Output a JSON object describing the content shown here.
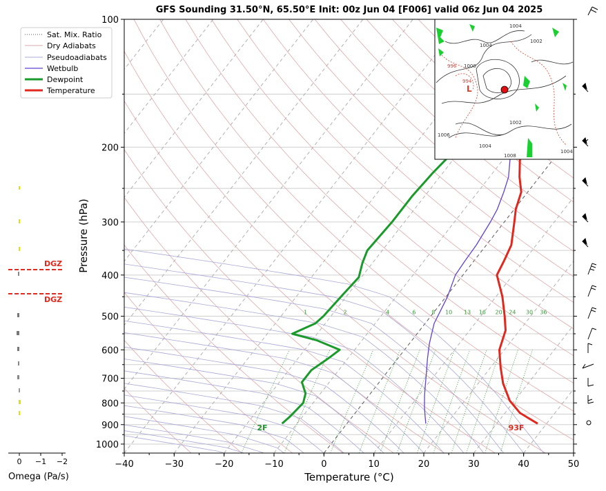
{
  "chart_data": {
    "type": "line",
    "title": "GFS Sounding 31.50°N, 65.50°E Init: 00z Jun 04 [F006] valid 06z Jun 04 2025",
    "xlabel": "Temperature (°C)",
    "ylabel": "Pressure (hPa)",
    "xlim": [
      -40,
      50
    ],
    "ylim": [
      1050,
      100
    ],
    "x_ticks": [
      "−40",
      "−30",
      "−20",
      "−10",
      "0",
      "10",
      "20",
      "30",
      "40",
      "50"
    ],
    "y_ticks": [
      "100",
      "200",
      "300",
      "400",
      "500",
      "600",
      "700",
      "800",
      "900",
      "1000"
    ],
    "legend": {
      "placement": "top-left",
      "entries": [
        "Sat. Mix. Ratio",
        "Dry Adiabats",
        "Pseudoadiabats",
        "Wetbulb",
        "Dewpoint",
        "Temperature"
      ]
    },
    "series": [
      {
        "name": "Temperature",
        "color": "#e0281e",
        "points": [
          [
            38.2,
            895
          ],
          [
            33,
            845
          ],
          [
            29,
            790
          ],
          [
            25,
            720
          ],
          [
            22,
            660
          ],
          [
            19,
            600
          ],
          [
            17.2,
            540
          ],
          [
            14.8,
            500
          ],
          [
            11.3,
            450
          ],
          [
            6.8,
            400
          ],
          [
            6,
            370
          ],
          [
            5,
            340
          ],
          [
            2,
            300
          ],
          [
            0.3,
            280
          ],
          [
            -1.3,
            255
          ],
          [
            -4,
            235
          ],
          [
            -6.5,
            215
          ],
          [
            -8,
            200
          ],
          [
            -11,
            175
          ],
          [
            -13.5,
            160
          ],
          [
            -14.5,
            150
          ],
          [
            -16.5,
            135
          ],
          [
            -18,
            125
          ],
          [
            -19.5,
            115
          ],
          [
            -21,
            108
          ],
          [
            -22,
            104
          ],
          [
            -23,
            100
          ]
        ]
      },
      {
        "name": "Wetbulb",
        "color": "#6040d0",
        "points": [
          [
            15.8,
            895
          ],
          [
            14.5,
            860
          ],
          [
            13,
            820
          ],
          [
            11.2,
            770
          ],
          [
            9.8,
            730
          ],
          [
            8,
            680
          ],
          [
            6,
            630
          ],
          [
            4,
            580
          ],
          [
            1.8,
            520
          ],
          [
            1.2,
            490
          ],
          [
            0.3,
            450
          ],
          [
            -1.5,
            400
          ],
          [
            -1.8,
            370
          ],
          [
            -2,
            340
          ],
          [
            -2.8,
            300
          ],
          [
            -3.4,
            280
          ],
          [
            -4.8,
            255
          ],
          [
            -6.2,
            235
          ],
          [
            -8.5,
            215
          ],
          [
            -10,
            200
          ],
          [
            -11,
            180
          ],
          [
            -12.5,
            165
          ],
          [
            -14,
            150
          ]
        ]
      },
      {
        "name": "Dewpoint",
        "color": "#1a9a2a",
        "points": [
          [
            -13,
            895
          ],
          [
            -12.5,
            860
          ],
          [
            -12,
            800
          ],
          [
            -13,
            760
          ],
          [
            -15.5,
            715
          ],
          [
            -15.5,
            670
          ],
          [
            -14,
            630
          ],
          [
            -13,
            600
          ],
          [
            -19,
            570
          ],
          [
            -25,
            550
          ],
          [
            -22,
            520
          ],
          [
            -21.5,
            500
          ],
          [
            -21,
            445
          ],
          [
            -20.5,
            405
          ],
          [
            -22,
            375
          ],
          [
            -23,
            350
          ],
          [
            -22.8,
            330
          ],
          [
            -22.5,
            300
          ],
          [
            -22.5,
            260
          ],
          [
            -22,
            230
          ],
          [
            -21,
            200
          ],
          [
            -22,
            175
          ],
          [
            -23,
            155
          ],
          [
            -24,
            140
          ],
          [
            -23,
            130
          ],
          [
            -22,
            120
          ],
          [
            -21,
            110
          ],
          [
            -20,
            100
          ]
        ]
      }
    ],
    "surface_labels": {
      "dewpoint": "2F",
      "temperature": "93F"
    },
    "mixing_ratio_labels": [
      "1",
      "2",
      "4",
      "6",
      "8",
      "10",
      "13",
      "16",
      "20",
      "24",
      "30",
      "36"
    ],
    "omega": {
      "xlabel": "Omega (Pa/s)",
      "x_ticks": [
        "0",
        "−1",
        "−2"
      ],
      "dgz_label": "DGZ"
    },
    "inset_map_labels": [
      "1004",
      "1004",
      "1002",
      "1000",
      "1002",
      "1006",
      "1004",
      "1008",
      "1004",
      "996",
      "L",
      "994"
    ]
  }
}
